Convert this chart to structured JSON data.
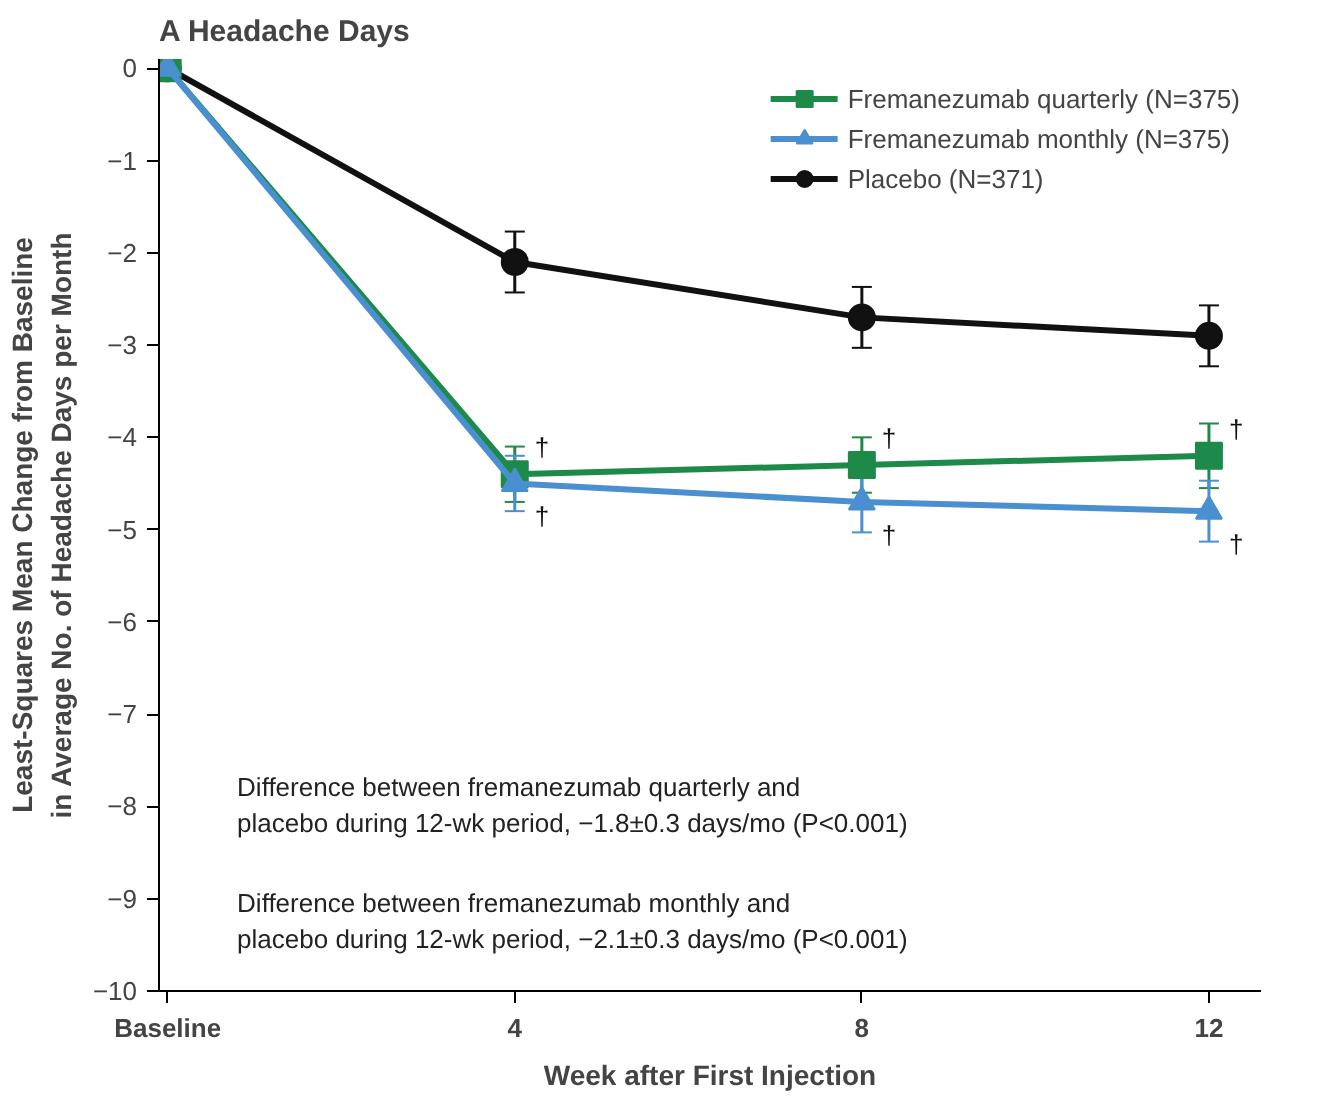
{
  "chart_data": {
    "type": "line",
    "title": "A  Headache Days",
    "xlabel": "Week after First Injection",
    "ylabel": "Least-Squares Mean Change from Baseline\nin Average No. of Headache Days per Month",
    "x": [
      0,
      4,
      8,
      12
    ],
    "series": [
      {
        "name": "Fremanezumab quarterly (N=375)",
        "color": "#1e8a4a",
        "marker": "square",
        "values": [
          0,
          -4.4,
          -4.3,
          -4.2
        ],
        "errors": [
          null,
          0.3,
          0.3,
          0.35
        ]
      },
      {
        "name": "Fremanezumab monthly (N=375)",
        "color": "#4a90d0",
        "marker": "triangle",
        "values": [
          0,
          -4.5,
          -4.7,
          -4.8
        ],
        "errors": [
          null,
          0.3,
          0.33,
          0.33
        ]
      },
      {
        "name": "Placebo (N=371)",
        "color": "#111111",
        "marker": "circle",
        "values": [
          0,
          -2.1,
          -2.7,
          -2.9
        ],
        "errors": [
          null,
          0.33,
          0.33,
          0.33
        ]
      }
    ],
    "xlim": [
      -0.1,
      12.6
    ],
    "ylim": [
      -10,
      0.1
    ],
    "xticks": [
      {
        "value": 0,
        "label": "Baseline"
      },
      4,
      8,
      12
    ],
    "yticks": [
      -10,
      -9,
      -8,
      -7,
      -6,
      -5,
      -4,
      -3,
      -2,
      -1,
      0
    ],
    "grid": false,
    "legend": "top right",
    "line_style": "solid",
    "annotations": [
      {
        "text": "†",
        "x": 4,
        "y": -4.4
      },
      {
        "text": "†",
        "x": 8,
        "y": -4.3
      },
      {
        "text": "†",
        "x": 12,
        "y": -4.2
      },
      {
        "text": "†",
        "x": 4,
        "y": -4.5
      },
      {
        "text": "†",
        "x": 8,
        "y": -4.7
      },
      {
        "text": "†",
        "x": 12,
        "y": -4.8
      },
      "Difference between fremanezumab quarterly and\n    placebo during 12-wk period, −1.8±0.3 days/mo (P<0.001)",
      "Difference between fremanezumab monthly and\n    placebo during 12-wk period, −2.1±0.3 days/mo (P<0.001)"
    ]
  }
}
